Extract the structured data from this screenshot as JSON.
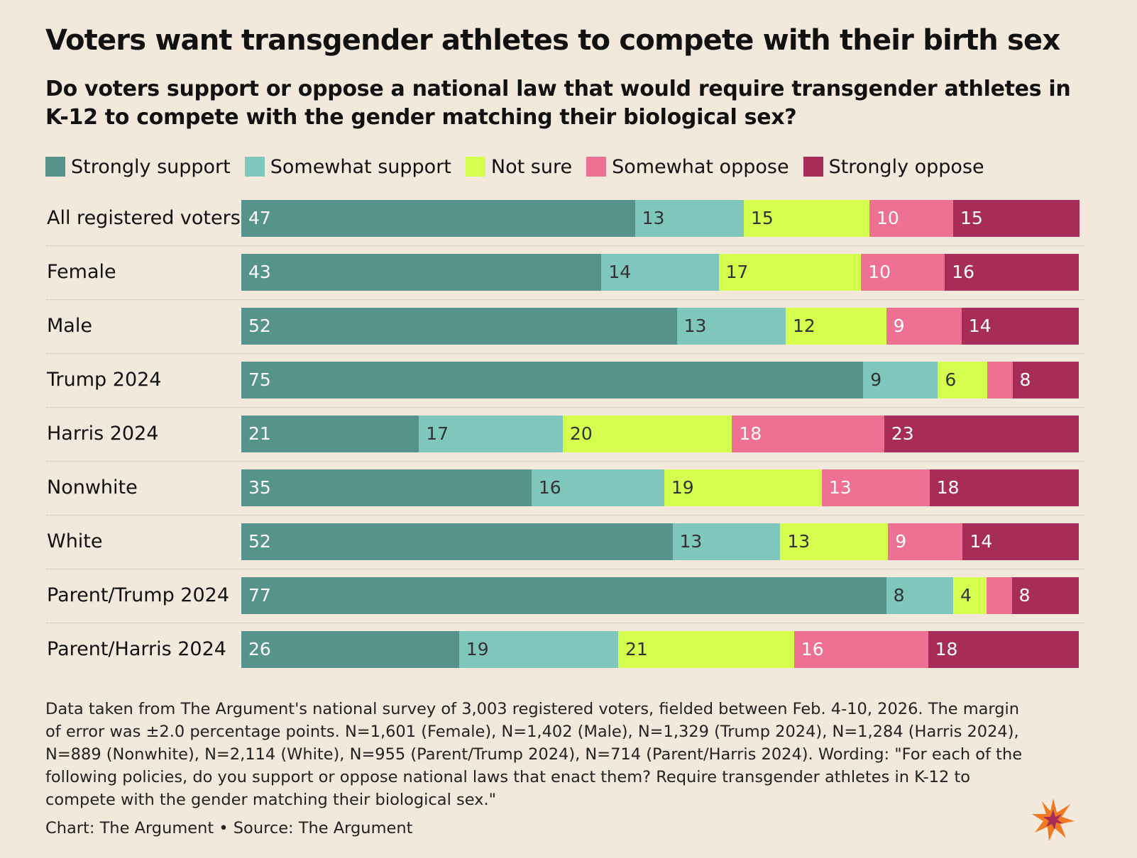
{
  "title": "Voters want transgender athletes to compete with their birth sex",
  "subtitle": "Do voters support or oppose a national law that would require transgender athletes in K-12 to compete with the gender matching their biological sex?",
  "legend": [
    {
      "label": "Strongly support",
      "color": "#55938b"
    },
    {
      "label": "Somewhat support",
      "color": "#7fc6bd"
    },
    {
      "label": "Not sure",
      "color": "#d4ff4f"
    },
    {
      "label": "Somewhat oppose",
      "color": "#ee7093"
    },
    {
      "label": "Strongly oppose",
      "color": "#a82c58"
    }
  ],
  "chart_data": {
    "type": "bar",
    "orientation": "horizontal",
    "stacked": true,
    "title": "Voters want transgender athletes to compete with their birth sex",
    "categories": [
      "All registered voters",
      "Female",
      "Male",
      "Trump 2024",
      "Harris 2024",
      "Nonwhite",
      "White",
      "Parent/Trump 2024",
      "Parent/Harris 2024"
    ],
    "series": [
      {
        "name": "Strongly support",
        "color": "#55938b",
        "values": [
          47,
          43,
          52,
          75,
          21,
          35,
          52,
          77,
          26
        ]
      },
      {
        "name": "Somewhat support",
        "color": "#7fc6bd",
        "values": [
          13,
          14,
          13,
          9,
          17,
          16,
          13,
          8,
          19
        ]
      },
      {
        "name": "Not sure",
        "color": "#d4ff4f",
        "values": [
          15,
          17,
          12,
          6,
          20,
          19,
          13,
          4,
          21
        ]
      },
      {
        "name": "Somewhat oppose",
        "color": "#ee7093",
        "values": [
          10,
          10,
          9,
          3,
          18,
          13,
          9,
          3,
          16
        ]
      },
      {
        "name": "Strongly oppose",
        "color": "#a82c58",
        "values": [
          15,
          16,
          14,
          8,
          23,
          18,
          14,
          8,
          18
        ]
      }
    ],
    "data_labels": [
      [
        "47",
        "13",
        "15",
        "10",
        "15"
      ],
      [
        "43",
        "14",
        "17",
        "10",
        "16"
      ],
      [
        "52",
        "13",
        "12",
        "9",
        "14"
      ],
      [
        "75",
        "9",
        "6",
        "",
        "8"
      ],
      [
        "21",
        "17",
        "20",
        "18",
        "23"
      ],
      [
        "35",
        "16",
        "19",
        "13",
        "18"
      ],
      [
        "52",
        "13",
        "13",
        "9",
        "14"
      ],
      [
        "77",
        "8",
        "4",
        "",
        "8"
      ],
      [
        "26",
        "19",
        "21",
        "16",
        "18"
      ]
    ],
    "label_colors": [
      "#ffffff",
      "#333333",
      "#333333",
      "#ffffff",
      "#ffffff"
    ],
    "xlim": [
      0,
      100
    ],
    "legend_position": "top"
  },
  "footnote": "Data taken from The Argument's national survey of 3,003 registered voters, fielded between Feb. 4-10, 2026. The margin of error was ±2.0 percentage points. N=1,601 (Female), N=1,402 (Male), N=1,329 (Trump 2024), N=1,284 (Harris 2024), N=889 (Nonwhite), N=2,114 (White), N=955 (Parent/Trump 2024), N=714 (Parent/Harris 2024). Wording: \"For each of the following policies, do you support or oppose national laws that enact them? Require transgender athletes in K-12 to compete with the gender matching their biological sex.\"",
  "credit": "Chart: The Argument • Source: The Argument",
  "logo": {
    "color_outer": "#f07a24",
    "color_inner": "#a82c58"
  }
}
